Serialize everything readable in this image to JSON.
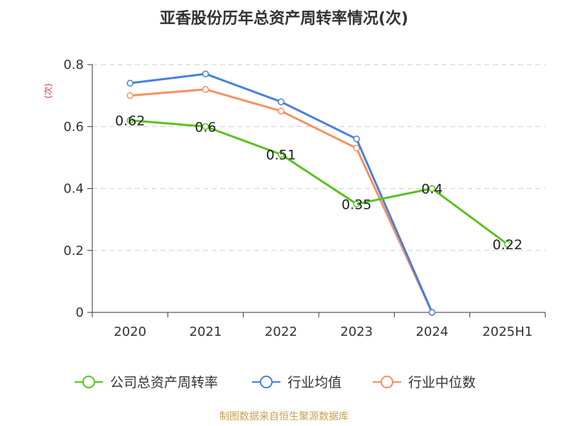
{
  "chart_data": {
    "type": "line",
    "title": "亚香股份历年总资产周转率情况(次)",
    "ylabel": "(次)",
    "xlabel": "",
    "categories": [
      "2020",
      "2021",
      "2022",
      "2023",
      "2024",
      "2025H1"
    ],
    "ylim": [
      0,
      0.8
    ],
    "yticks": [
      "0",
      "0.2",
      "0.4",
      "0.6",
      "0.8"
    ],
    "grid": true,
    "legend_position": "bottom",
    "series": [
      {
        "name": "公司总资产周转率",
        "color": "#5ac21f",
        "values": [
          0.62,
          0.6,
          0.51,
          0.35,
          0.4,
          0.22
        ],
        "labels": [
          "0.62",
          "0.6",
          "0.51",
          "0.35",
          "0.4",
          "0.22"
        ]
      },
      {
        "name": "行业均值",
        "color": "#4a7fdc",
        "values": [
          0.74,
          0.77,
          0.68,
          0.56,
          0.0,
          null
        ],
        "labels": null
      },
      {
        "name": "行业中位数",
        "color": "#f79060",
        "values": [
          0.7,
          0.72,
          0.65,
          0.53,
          0.0,
          null
        ],
        "labels": null
      }
    ]
  },
  "source": "制图数据来自恒生聚源数据库"
}
